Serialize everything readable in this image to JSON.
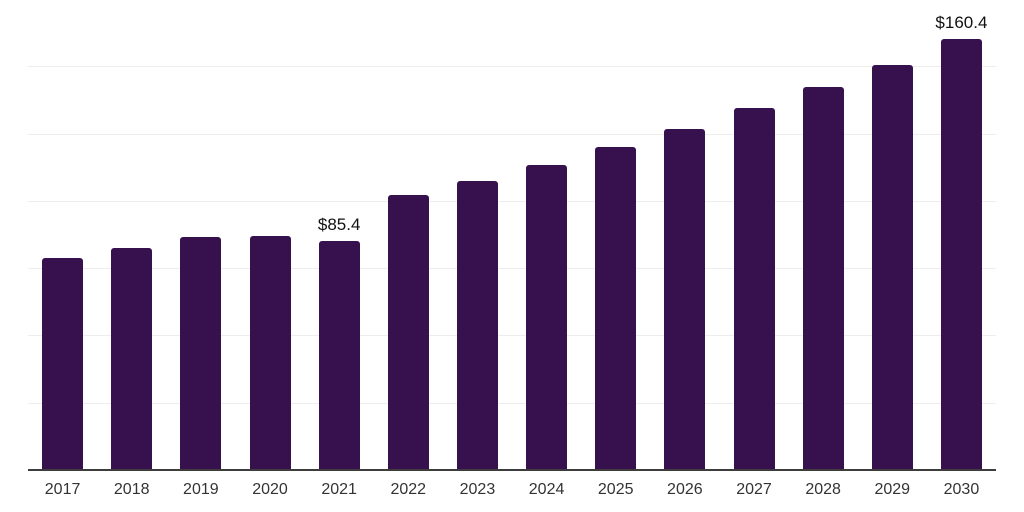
{
  "chart_data": {
    "type": "bar",
    "title": "",
    "xlabel": "",
    "ylabel": "",
    "categories": [
      "2017",
      "2018",
      "2019",
      "2020",
      "2021",
      "2022",
      "2023",
      "2024",
      "2025",
      "2026",
      "2027",
      "2028",
      "2029",
      "2030"
    ],
    "values": [
      79.2,
      82.9,
      86.9,
      87.4,
      85.4,
      102.7,
      107.9,
      113.8,
      120.4,
      127.2,
      134.7,
      142.5,
      151.0,
      160.4
    ],
    "annotations": [
      {
        "category": "2021",
        "label": "$85.4"
      },
      {
        "category": "2030",
        "label": "$160.4"
      }
    ],
    "ylim": [
      0,
      175
    ],
    "gridline_step": 25,
    "grid": true,
    "legend": false,
    "y_tick_labels_visible": false,
    "colors": {
      "bar": "#36114E",
      "background": "#FFFFFF",
      "gridline": "#EDEDED",
      "axis_line": "#3D3D3D",
      "tick_label": "#333333",
      "annotation": "#111111"
    }
  }
}
